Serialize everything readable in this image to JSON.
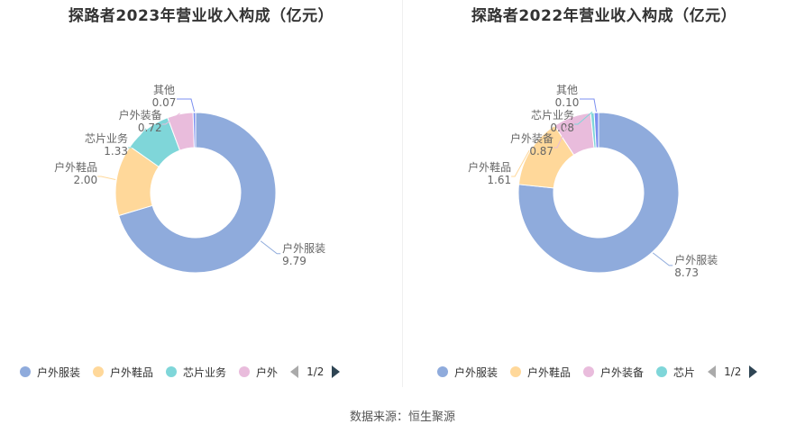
{
  "colors": {
    "outdoor_apparel": "#8fabdc",
    "outdoor_shoes": "#ffd89a",
    "chip_business": "#7fd6d9",
    "outdoor_equipment": "#e9bcdc",
    "other": "#7b8ff0"
  },
  "chart_data": [
    {
      "type": "pie",
      "title": "探路者2023年营业收入构成（亿元）",
      "slices": [
        {
          "name": "户外服装",
          "value": 9.79,
          "label": "9.79",
          "color_key": "outdoor_apparel"
        },
        {
          "name": "户外鞋品",
          "value": 2.0,
          "label": "2.00",
          "color_key": "outdoor_shoes"
        },
        {
          "name": "芯片业务",
          "value": 1.33,
          "label": "1.33",
          "color_key": "chip_business"
        },
        {
          "name": "户外装备",
          "value": 0.72,
          "label": "0.72",
          "color_key": "outdoor_equipment"
        },
        {
          "name": "其他",
          "value": 0.07,
          "label": "0.07",
          "color_key": "other"
        }
      ],
      "legend": {
        "position": "bottom",
        "items": [
          {
            "name": "户外服装",
            "color_key": "outdoor_apparel"
          },
          {
            "name": "户外鞋品",
            "color_key": "outdoor_shoes"
          },
          {
            "name": "芯片业务",
            "color_key": "chip_business"
          },
          {
            "name": "户外",
            "color_key": "outdoor_equipment"
          }
        ],
        "page": "1/2"
      }
    },
    {
      "type": "pie",
      "title": "探路者2022年营业收入构成（亿元）",
      "slices": [
        {
          "name": "户外服装",
          "value": 8.73,
          "label": "8.73",
          "color_key": "outdoor_apparel"
        },
        {
          "name": "户外鞋品",
          "value": 1.61,
          "label": "1.61",
          "color_key": "outdoor_shoes"
        },
        {
          "name": "户外装备",
          "value": 0.87,
          "label": "0.87",
          "color_key": "outdoor_equipment"
        },
        {
          "name": "芯片业务",
          "value": 0.08,
          "label": "0.08",
          "color_key": "chip_business"
        },
        {
          "name": "其他",
          "value": 0.1,
          "label": "0.10",
          "color_key": "other"
        }
      ],
      "legend": {
        "position": "bottom",
        "items": [
          {
            "name": "户外服装",
            "color_key": "outdoor_apparel"
          },
          {
            "name": "户外鞋品",
            "color_key": "outdoor_shoes"
          },
          {
            "name": "户外装备",
            "color_key": "outdoor_equipment"
          },
          {
            "name": "芯片",
            "color_key": "chip_business"
          }
        ],
        "page": "1/2"
      }
    }
  ],
  "source": "数据来源：恒生聚源"
}
